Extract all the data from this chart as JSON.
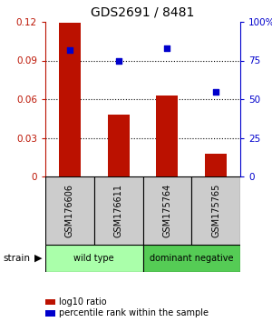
{
  "title": "GDS2691 / 8481",
  "samples": [
    "GSM176606",
    "GSM176611",
    "GSM175764",
    "GSM175765"
  ],
  "log10_ratio": [
    0.119,
    0.048,
    0.063,
    0.018
  ],
  "percentile_rank": [
    82,
    75,
    83,
    55
  ],
  "ylim_left": [
    0,
    0.12
  ],
  "ylim_right": [
    0,
    100
  ],
  "yticks_left": [
    0,
    0.03,
    0.06,
    0.09,
    0.12
  ],
  "yticks_right": [
    0,
    25,
    50,
    75,
    100
  ],
  "ytick_labels_right": [
    "0",
    "25",
    "50",
    "75",
    "100%"
  ],
  "bar_color": "#bb1100",
  "scatter_color": "#0000cc",
  "bar_width": 0.45,
  "groups": [
    {
      "label": "wild type",
      "color": "#aaffaa",
      "start": 0,
      "end": 2
    },
    {
      "label": "dominant negative",
      "color": "#55cc55",
      "start": 2,
      "end": 4
    }
  ],
  "strain_label": "strain",
  "legend_items": [
    {
      "color": "#bb1100",
      "label": "log10 ratio"
    },
    {
      "color": "#0000cc",
      "label": "percentile rank within the sample"
    }
  ],
  "grid_color": "black",
  "sample_box_color": "#cccccc",
  "background_color": "#ffffff"
}
